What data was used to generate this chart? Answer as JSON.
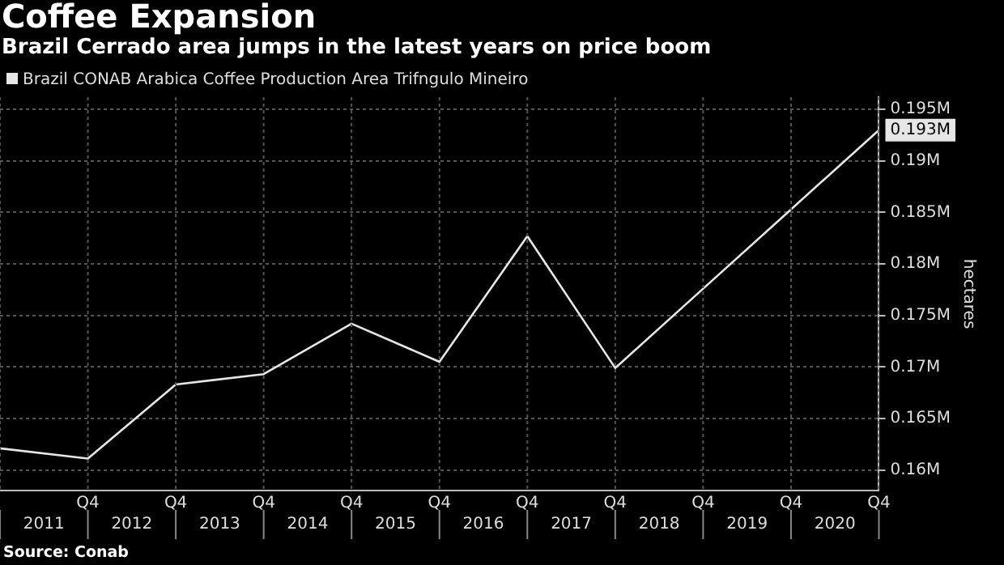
{
  "chart_data": {
    "type": "line",
    "title": "Coffee Expansion",
    "subtitle": "Brazil Cerrado area jumps in the latest years on price boom",
    "ylabel": "hectares",
    "categories": [
      null,
      "Q4",
      "Q4",
      "Q4",
      "Q4",
      "Q4",
      "Q4",
      "Q4",
      "Q4",
      "Q4",
      "Q4"
    ],
    "series": [
      {
        "name": "Brazil CONAB Arabica Coffee Production Area Trifngulo Mineiro",
        "color": "#e6e6e6",
        "values": [
          0.1621,
          0.1611,
          0.1683,
          0.1693,
          0.1742,
          0.1705,
          0.1827,
          0.1699,
          0.1776,
          0.1853,
          0.193
        ],
        "value_labels": [
          null,
          null,
          null,
          null,
          null,
          null,
          null,
          null,
          null,
          null,
          "0.193M"
        ]
      }
    ],
    "ylim": [
      0.158,
      0.1962
    ],
    "yticks": [
      {
        "value": 0.16,
        "label": "0.16M"
      },
      {
        "value": 0.165,
        "label": "0.165M"
      },
      {
        "value": 0.17,
        "label": "0.17M"
      },
      {
        "value": 0.175,
        "label": "0.175M"
      },
      {
        "value": 0.18,
        "label": "0.18M"
      },
      {
        "value": 0.185,
        "label": "0.185M"
      },
      {
        "value": 0.19,
        "label": "0.19M"
      },
      {
        "value": 0.195,
        "label": "0.195M"
      }
    ],
    "grid": true,
    "legend": "top left",
    "marker": "none",
    "line_style": "solid",
    "annotations": [
      "Source: Conab",
      "2011",
      "2012",
      "2013",
      "2014",
      "2015",
      "2016",
      "2017",
      "2018",
      "2019",
      "2020"
    ]
  }
}
